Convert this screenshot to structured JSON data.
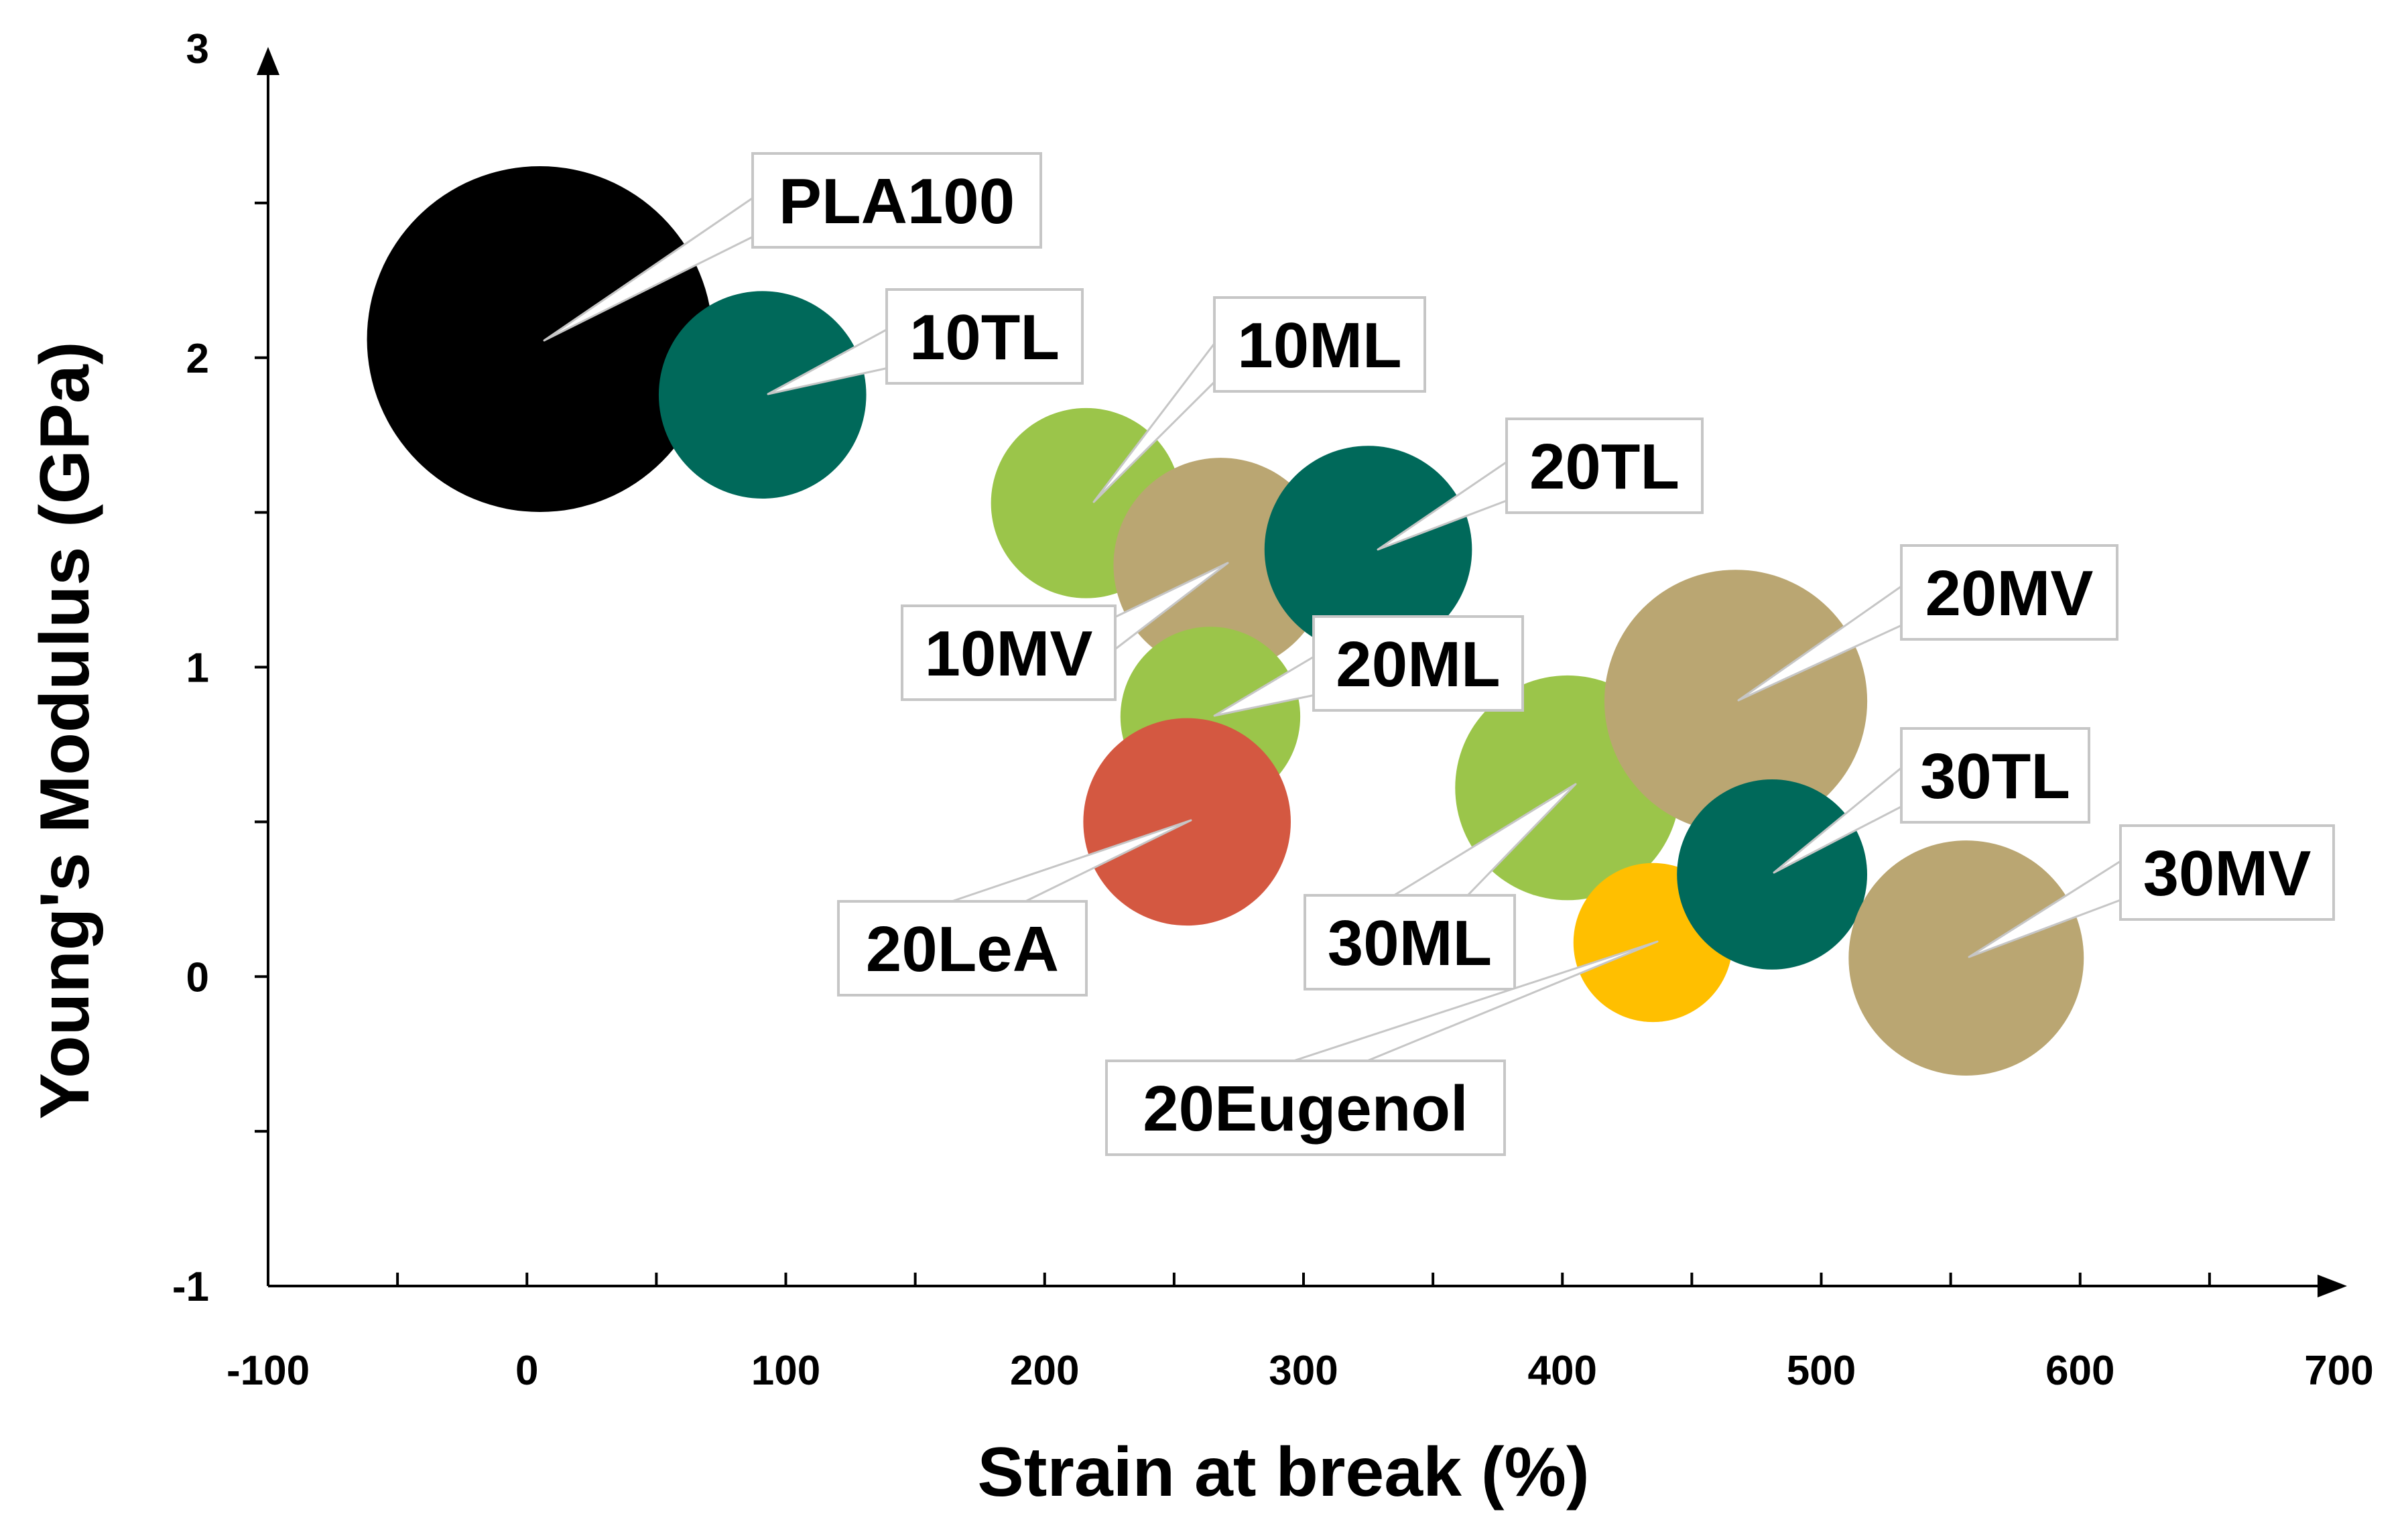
{
  "chart_data": {
    "type": "bubble",
    "xlabel": "Strain at break (%)",
    "ylabel": "Young's Modulus (GPa)",
    "xlim": [
      -100,
      700
    ],
    "ylim": [
      -1,
      3
    ],
    "xticks": [
      -100,
      0,
      100,
      200,
      300,
      400,
      500,
      600,
      700
    ],
    "yticks": [
      -1,
      0,
      1,
      2,
      3
    ],
    "points": [
      {
        "label": "PLA100",
        "x": 5,
        "y": 2.06,
        "size": 1.0,
        "color": "#000000"
      },
      {
        "label": "10TL",
        "x": 91,
        "y": 1.88,
        "size": 0.6,
        "color": "#00695A"
      },
      {
        "label": "10ML",
        "x": 216,
        "y": 1.53,
        "size": 0.55,
        "color": "#9BC54A"
      },
      {
        "label": "10MV",
        "x": 268,
        "y": 1.33,
        "size": 0.62,
        "color": "#BAA672"
      },
      {
        "label": "20TL",
        "x": 325,
        "y": 1.38,
        "size": 0.6,
        "color": "#00695A"
      },
      {
        "label": "20ML",
        "x": 264,
        "y": 0.84,
        "size": 0.52,
        "color": "#9BC54A"
      },
      {
        "label": "20LeA",
        "x": 255,
        "y": 0.5,
        "size": 0.6,
        "color": "#D45841"
      },
      {
        "label": "30ML",
        "x": 402,
        "y": 0.61,
        "size": 0.65,
        "color": "#9BC54A"
      },
      {
        "label": "20MV",
        "x": 467,
        "y": 0.89,
        "size": 0.76,
        "color": "#BAA672"
      },
      {
        "label": "20Eugenol",
        "x": 435,
        "y": 0.11,
        "size": 0.46,
        "color": "#FFBF00"
      },
      {
        "label": "30TL",
        "x": 481,
        "y": 0.33,
        "size": 0.55,
        "color": "#00695A"
      },
      {
        "label": "30MV",
        "x": 556,
        "y": 0.06,
        "size": 0.68,
        "color": "#BAA672"
      }
    ]
  }
}
